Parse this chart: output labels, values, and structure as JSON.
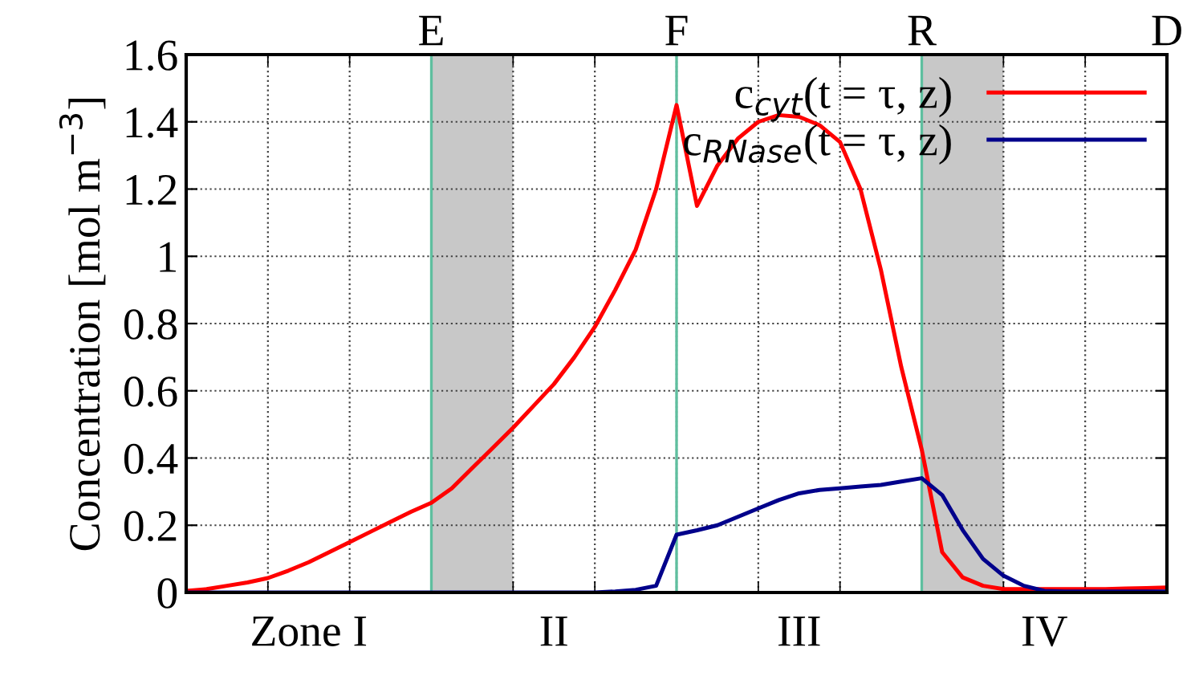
{
  "chart_data": {
    "type": "line",
    "ylabel": "Concentration [mol m$^{−3}$]",
    "categories": [
      null,
      null,
      null,
      null,
      null,
      null,
      "Zone I",
      null,
      null,
      null,
      null,
      null,
      null,
      null,
      null,
      null,
      null,
      null,
      "II",
      null,
      null,
      null,
      null,
      null,
      null,
      null,
      null,
      null,
      null,
      null,
      "III",
      null,
      null,
      null,
      null,
      null,
      null,
      null,
      null,
      null,
      null,
      null,
      "IV",
      null,
      null,
      null,
      null,
      null,
      null
    ],
    "ylim": [
      0,
      1.6
    ],
    "yticks": [
      0,
      0.2,
      0.4,
      0.6,
      0.8,
      1,
      1.2,
      1.4,
      1.6
    ],
    "grid": true,
    "legend": "top right",
    "marker": "none",
    "line_style": "solid",
    "annotations": [
      "E",
      "F",
      "R",
      "D"
    ],
    "series": [
      {
        "name": "c$_{cyt}$(t = τ, z)",
        "color": "#ff0000",
        "values": [
          0.005,
          0.01,
          0.02,
          0.03,
          0.043,
          0.065,
          0.09,
          0.12,
          0.15,
          0.18,
          0.21,
          0.24,
          0.267,
          0.31,
          0.37,
          0.43,
          0.49,
          0.555,
          0.62,
          0.7,
          0.79,
          0.9,
          1.02,
          1.2,
          1.45,
          1.15,
          1.27,
          1.35,
          1.4,
          1.42,
          1.415,
          1.39,
          1.34,
          1.2,
          0.96,
          0.67,
          0.425,
          0.12,
          0.045,
          0.02,
          0.01,
          0.01,
          0.01,
          0.01,
          0.01,
          0.01,
          0.012,
          0.013,
          0.015
        ]
      },
      {
        "name": "c$_{RNase}$(t = τ, z)",
        "color": "#00008b",
        "values": [
          0,
          0,
          0,
          0,
          0,
          0,
          0,
          0,
          0,
          0,
          0,
          0,
          0,
          0,
          0,
          0,
          0,
          0,
          0,
          0,
          0,
          0.003,
          0.008,
          0.02,
          0.172,
          0.185,
          0.2,
          0.225,
          0.25,
          0.275,
          0.295,
          0.305,
          0.31,
          0.315,
          0.32,
          0.33,
          0.34,
          0.29,
          0.186,
          0.1,
          0.05,
          0.02,
          0.005,
          0.003,
          0.003,
          0.003,
          0.003,
          0.003,
          0.003
        ]
      }
    ]
  }
}
